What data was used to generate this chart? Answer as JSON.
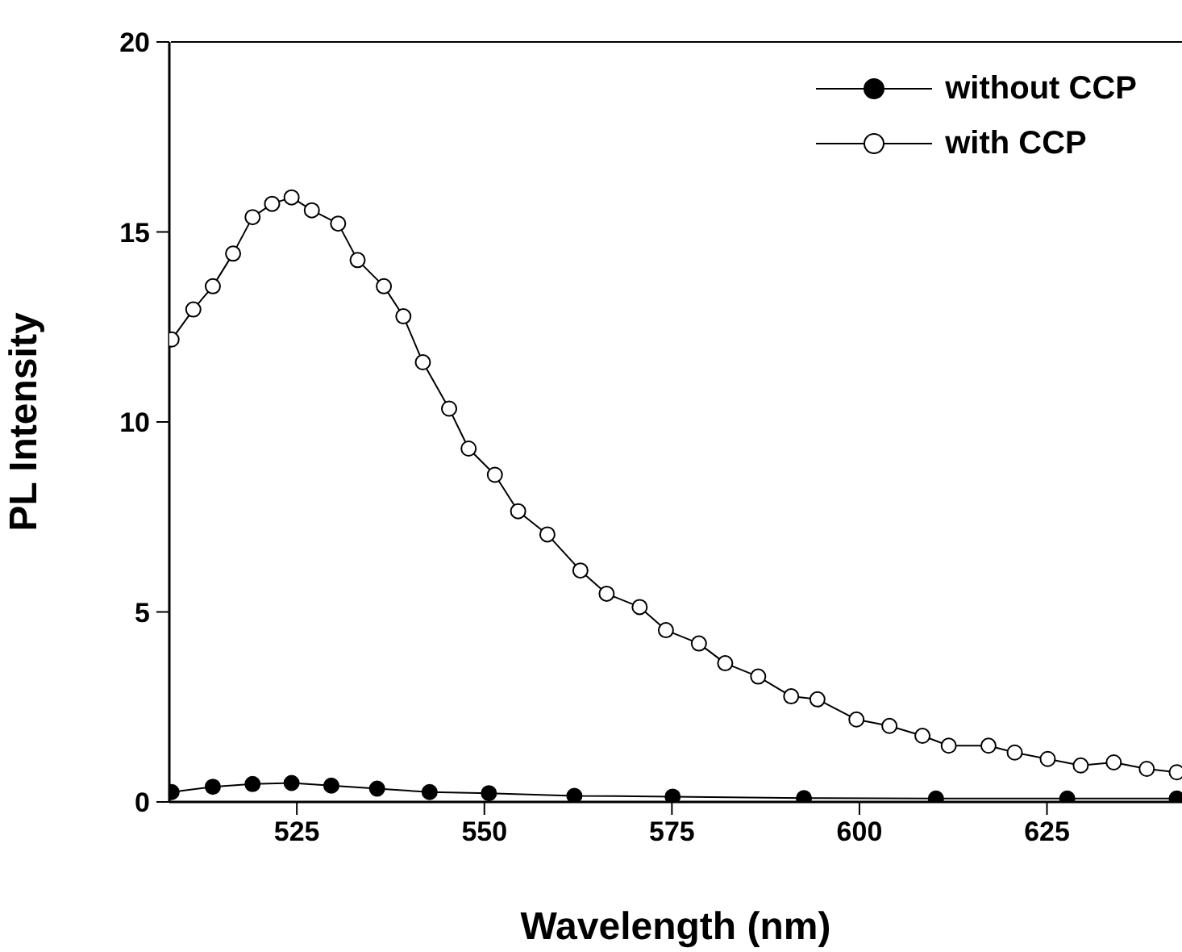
{
  "chart_data": {
    "type": "line",
    "xlabel": "Wavelength (nm)",
    "ylabel": "PL Intensity",
    "xlim": [
      508,
      643
    ],
    "xticks": [
      525,
      550,
      575,
      600,
      625
    ],
    "ylim": [
      0,
      20
    ],
    "yticks": [
      0,
      5,
      10,
      15,
      20
    ],
    "grid": false,
    "legend": "top right",
    "marker": "circle",
    "series": [
      {
        "name": "without CCP",
        "color": "#000000",
        "x": [
          508.3,
          513.8,
          519.1,
          524.3,
          529.6,
          535.7,
          542.7,
          550.6,
          562,
          575.1,
          592.6,
          610.2,
          627.7,
          642.3
        ],
        "values": [
          0.26,
          0.4,
          0.47,
          0.5,
          0.43,
          0.35,
          0.26,
          0.23,
          0.16,
          0.14,
          0.1,
          0.09,
          0.09,
          0.09
        ]
      },
      {
        "name": "with CCP",
        "color": "#ffffff",
        "x": [
          508.3,
          511.2,
          513.8,
          516.5,
          519.1,
          521.7,
          524.3,
          527,
          530.5,
          533.1,
          536.6,
          539.2,
          541.8,
          545.3,
          547.9,
          551.4,
          554.5,
          558.4,
          562.8,
          566.3,
          570.7,
          574.2,
          578.6,
          582.1,
          586.5,
          590.9,
          594.4,
          599.6,
          604,
          608.4,
          611.9,
          617.2,
          620.7,
          625.1,
          629.5,
          633.9,
          638.3,
          642.3
        ],
        "values": [
          12.17,
          12.96,
          13.57,
          14.43,
          15.39,
          15.74,
          15.91,
          15.57,
          15.22,
          14.26,
          13.57,
          12.78,
          11.57,
          10.35,
          9.3,
          8.61,
          7.65,
          7.04,
          6.09,
          5.48,
          5.13,
          4.52,
          4.17,
          3.65,
          3.3,
          2.78,
          2.7,
          2.17,
          2.0,
          1.74,
          1.48,
          1.48,
          1.3,
          1.13,
          0.96,
          1.04,
          0.87,
          0.78
        ]
      }
    ]
  }
}
